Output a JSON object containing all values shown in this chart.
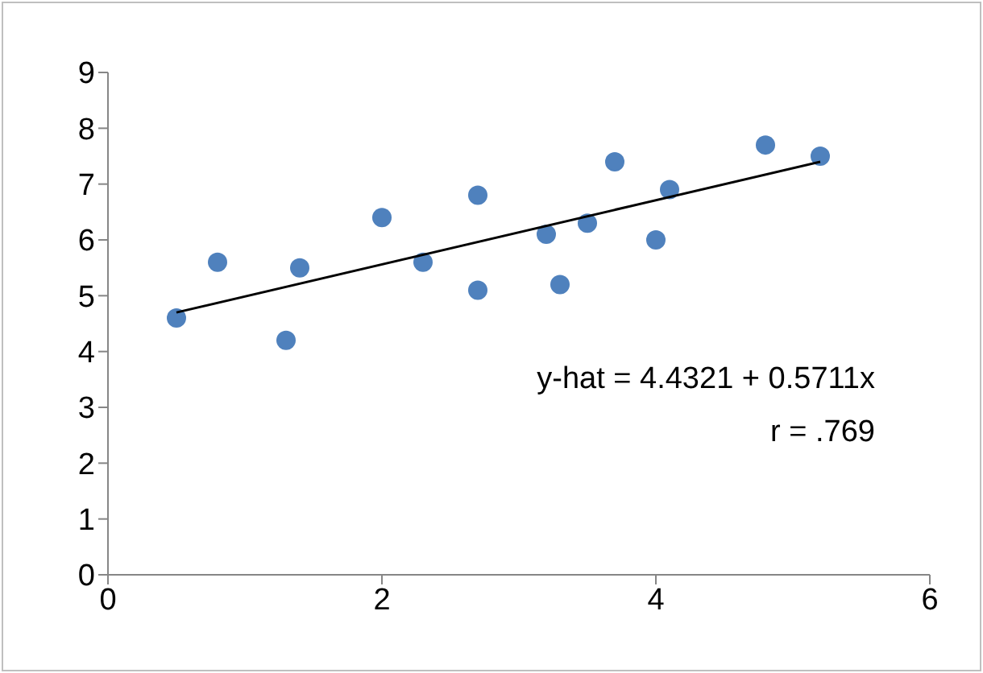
{
  "chart_data": {
    "type": "scatter",
    "x": [
      0.5,
      0.8,
      1.3,
      1.4,
      2.0,
      2.3,
      2.7,
      2.7,
      3.2,
      3.3,
      3.5,
      3.7,
      4.0,
      4.1,
      4.8,
      5.2
    ],
    "series": [
      {
        "color": "#4f81bd",
        "values": [
          4.6,
          5.6,
          4.2,
          5.5,
          6.4,
          5.6,
          6.8,
          5.1,
          6.1,
          5.2,
          6.3,
          7.4,
          6.0,
          6.9,
          7.7,
          7.5
        ]
      },
      {
        "type": "line",
        "marker": "none",
        "color": "#000000",
        "x": [
          0.5,
          5.2
        ],
        "values": [
          4.7,
          7.4
        ]
      }
    ],
    "xlim": [
      0,
      6
    ],
    "xticks": [
      0,
      2,
      4,
      6
    ],
    "ylim": [
      0,
      9
    ],
    "yticks": [
      0,
      1,
      2,
      3,
      4,
      5,
      6,
      7,
      8,
      9
    ],
    "marker": "circle",
    "grid": false,
    "annotations": [
      "y-hat = 4.4321 + 0.5711x",
      "r = .769"
    ]
  }
}
